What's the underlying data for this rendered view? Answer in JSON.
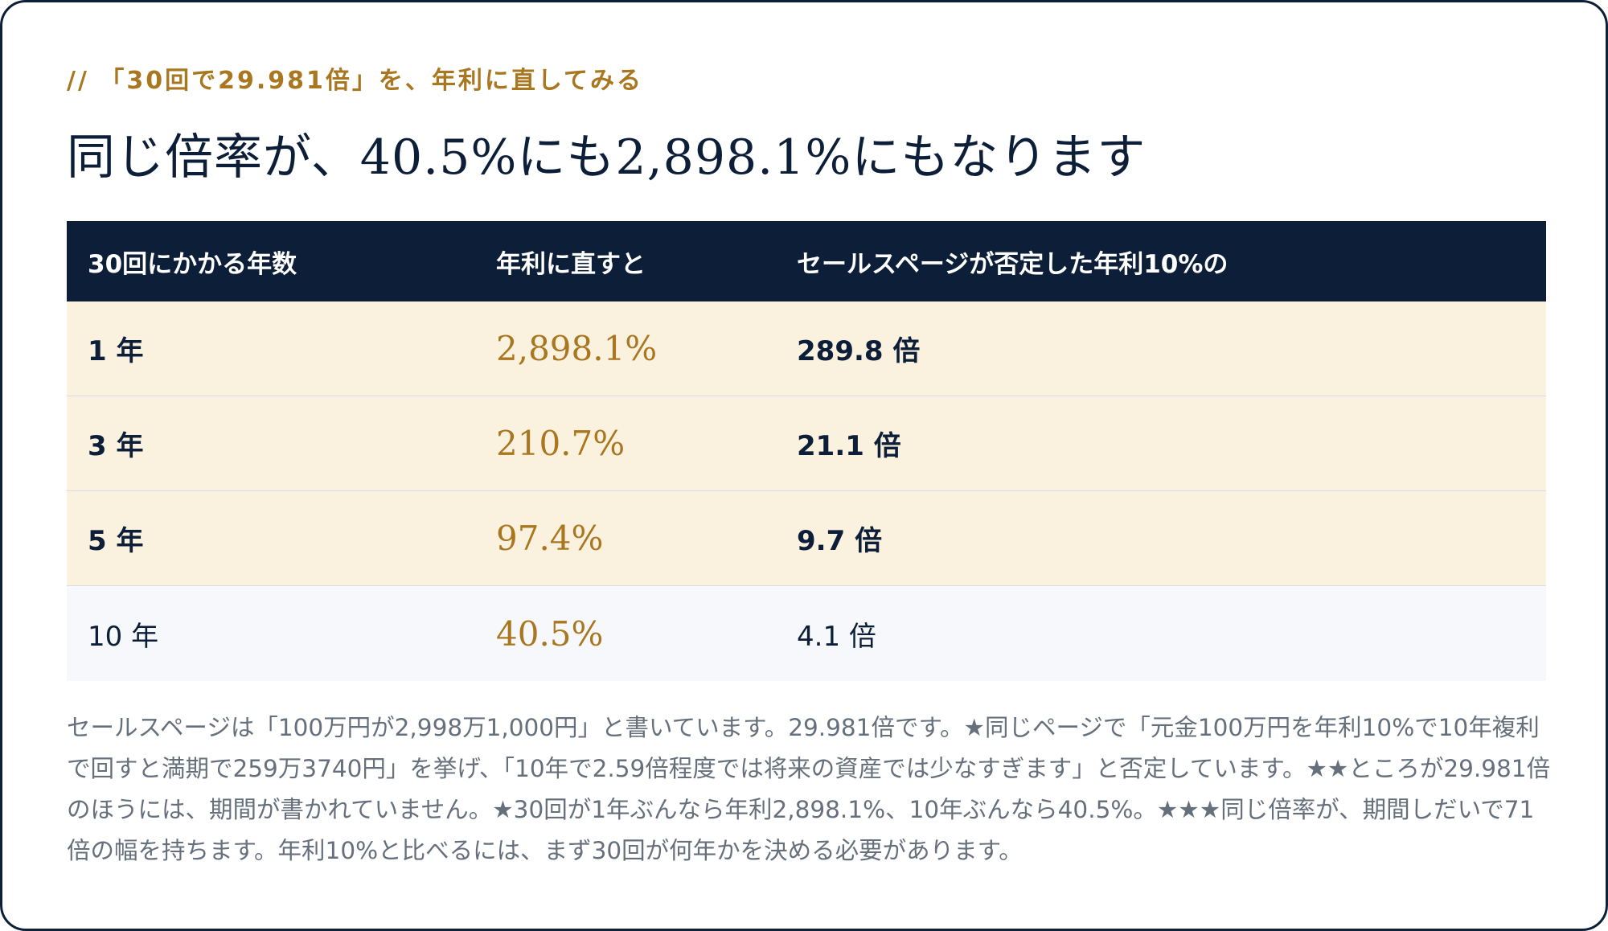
{
  "eyebrow": "// 「30回で29.981倍」を、年利に直してみる",
  "headline": "同じ倍率が、40.5%にも2,898.1%にもなります",
  "table": {
    "headers": [
      "30回にかかる年数",
      "年利に直すと",
      "セールスページが否定した年利10%の"
    ],
    "rows": [
      {
        "years": "1 年",
        "rate": "2,898.1%",
        "multiple": "289.8 倍"
      },
      {
        "years": "3 年",
        "rate": "210.7%",
        "multiple": "21.1 倍"
      },
      {
        "years": "5 年",
        "rate": "97.4%",
        "multiple": "9.7 倍"
      },
      {
        "years": "10 年",
        "rate": "40.5%",
        "multiple": "4.1 倍"
      }
    ]
  },
  "note": "セールスページは「100万円が2,998万1,000円」と書いています。29.981倍です。★同じページで「元金100万円を年利10%で10年複利で回すと満期で259万3740円」を挙げ、「10年で2.59倍程度では将来の資産では少なすぎます」と否定しています。★★ところが29.981倍のほうには、期間が書かれていません。★30回が1年ぶんなら年利2,898.1%、10年ぶんなら40.5%。★★★同じ倍率が、期間しだいで71倍の幅を持ちます。年利10%と比べるには、まず30回が何年かを決める必要があります。",
  "colors": {
    "navy": "#0d1f38",
    "gold": "#a9771f",
    "highlight_row": "#faf1df",
    "plain_row": "#f6f8fb",
    "note_text": "#66707c"
  }
}
